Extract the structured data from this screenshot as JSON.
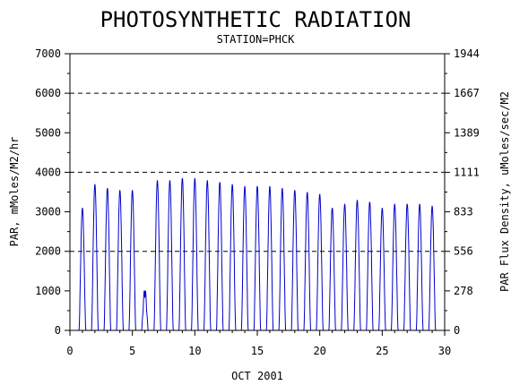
{
  "chart_data": {
    "type": "line",
    "title": "PHOTOSYNTHETIC RADIATION",
    "subtitle": "STATION=PHCK",
    "xlabel": "OCT 2001",
    "ylabel": "PAR, mMoles/M2/hr",
    "ylabel_right": "PAR Flux Density, uMoles/sec/M2",
    "xlim": [
      0,
      30
    ],
    "ylim": [
      0,
      7000
    ],
    "x_ticks": [
      "0",
      "5",
      "10",
      "15",
      "20",
      "25",
      "30"
    ],
    "x_tick_values": [
      0,
      5,
      10,
      15,
      20,
      25,
      30
    ],
    "y_ticks": [
      "0",
      "1000",
      "2000",
      "3000",
      "4000",
      "5000",
      "6000",
      "7000"
    ],
    "y_tick_values": [
      0,
      1000,
      2000,
      3000,
      4000,
      5000,
      6000,
      7000
    ],
    "y2_ticks": [
      "0",
      "278",
      "556",
      "833",
      "1111",
      "1389",
      "1667",
      "1944"
    ],
    "y2_tick_values": [
      0,
      1000,
      2000,
      3000,
      4000,
      5000,
      6000,
      7000
    ],
    "reference_lines": [
      2000,
      4000,
      6000
    ],
    "grid": false,
    "line_color": "#0000cc",
    "daily_peaks": {
      "day": [
        1,
        2,
        3,
        4,
        5,
        6,
        7,
        8,
        9,
        10,
        11,
        12,
        13,
        14,
        15,
        16,
        17,
        18,
        19,
        20,
        21,
        22,
        23,
        24,
        25,
        26,
        27,
        28,
        29
      ],
      "peak": [
        3100,
        3700,
        3600,
        3550,
        3550,
        1100,
        3800,
        3800,
        3850,
        3850,
        3800,
        3750,
        3700,
        3650,
        3650,
        3650,
        3600,
        3550,
        3500,
        3450,
        3100,
        3200,
        3300,
        3250,
        3100,
        3200,
        3200,
        3200,
        3150
      ]
    }
  }
}
